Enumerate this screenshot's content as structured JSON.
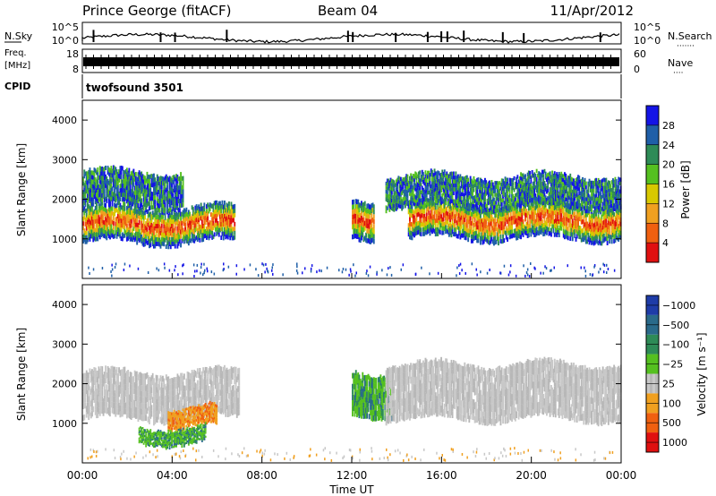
{
  "header": {
    "station": "Prince George (fitACF)",
    "beam": "Beam 04",
    "date": "11/Apr/2012"
  },
  "panels": {
    "nsky": {
      "left_label": "N.Sky",
      "right_label": "N.Search",
      "right_dots": "·······",
      "ytick_top": "10^5",
      "ytick_bottom": "10^0",
      "rtick_top": "10^5",
      "rtick_bottom": "10^0"
    },
    "freq": {
      "left_label_1": "Freq.",
      "left_label_2": "[MHz]",
      "ytick_top": "18",
      "ytick_bottom": "8",
      "rtick_top": "60",
      "rtick_bottom": "0",
      "right_label": "Nave",
      "right_dots": "····"
    },
    "cpid": {
      "label": "CPID",
      "value": "twofsound 3501"
    }
  },
  "chart_data": [
    {
      "type": "heatmap",
      "title": "",
      "ylabel": "Slant Range [km]",
      "xlabel": "",
      "x_range_hours": [
        0,
        24
      ],
      "ylim": [
        0,
        4500
      ],
      "yticks": [
        1000,
        2000,
        3000,
        4000
      ],
      "colorbar": {
        "label": "Power [dB]",
        "ticks": [
          "4",
          "8",
          "12",
          "16",
          "20",
          "24",
          "28"
        ],
        "colors": [
          "#1414e6",
          "#1f5fa8",
          "#2e8b57",
          "#55c020",
          "#d8c800",
          "#f0a020",
          "#f06010",
          "#e01010"
        ]
      },
      "bands": [
        {
          "t0": 0.0,
          "t1": 6.8,
          "r0": 900,
          "r1": 1800,
          "level": "high"
        },
        {
          "t0": 0.0,
          "t1": 4.5,
          "r0": 1800,
          "r1": 2700,
          "level": "low"
        },
        {
          "t0": 12.0,
          "t1": 13.0,
          "r0": 1000,
          "r1": 2000,
          "level": "high"
        },
        {
          "t0": 14.5,
          "t1": 24.0,
          "r0": 1000,
          "r1": 1900,
          "level": "high"
        },
        {
          "t0": 13.5,
          "t1": 24.0,
          "r0": 1800,
          "r1": 2600,
          "level": "low"
        }
      ]
    },
    {
      "type": "heatmap",
      "title": "",
      "ylabel": "Slant Range [km]",
      "xlabel": "Time UT",
      "x_range_hours": [
        0,
        24
      ],
      "ylim": [
        0,
        4500
      ],
      "yticks": [
        1000,
        2000,
        3000,
        4000
      ],
      "xticks": [
        "00:00",
        "04:00",
        "08:00",
        "12:00",
        "16:00",
        "20:00",
        "00:00"
      ],
      "colorbar": {
        "label": "Velocity [m s⁻¹]",
        "ticks": [
          "1000",
          "500",
          "100",
          "25",
          "−25",
          "−100",
          "−500",
          "−1000"
        ],
        "colors": [
          "#1e3ca8",
          "#2a6a8a",
          "#2e8b57",
          "#55c020",
          "#c8c8c8",
          "#f0a020",
          "#f06010",
          "#e01010"
        ]
      },
      "bands": [
        {
          "t0": 0.0,
          "t1": 7.0,
          "r0": 1100,
          "r1": 2300,
          "level": "grey"
        },
        {
          "t0": 3.8,
          "t1": 6.0,
          "r0": 900,
          "r1": 1400,
          "level": "orange"
        },
        {
          "t0": 2.5,
          "t1": 5.5,
          "r0": 500,
          "r1": 900,
          "level": "green"
        },
        {
          "t0": 12.0,
          "t1": 13.8,
          "r0": 1200,
          "r1": 2300,
          "level": "green"
        },
        {
          "t0": 13.5,
          "t1": 24.0,
          "r0": 1100,
          "r1": 2500,
          "level": "grey"
        }
      ]
    }
  ]
}
